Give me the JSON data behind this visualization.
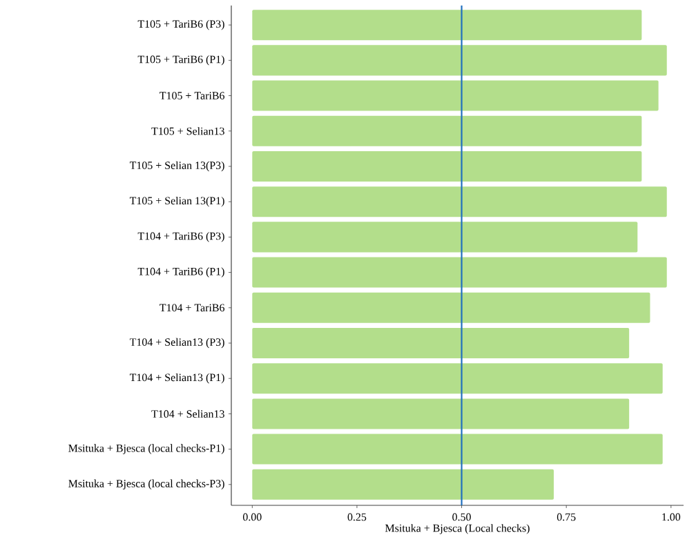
{
  "chart_data": {
    "type": "bar",
    "orientation": "horizontal",
    "xlabel": "Msituka + Bjesca (Local checks)",
    "categories": [
      "T105 + TariB6 (P3)",
      "T105 + TariB6 (P1)",
      "T105 + TariB6",
      "T105 + Selian13",
      "T105 + Selian 13(P3)",
      "T105 + Selian 13(P1)",
      "T104 + TariB6 (P3)",
      "T104 + TariB6 (P1)",
      "T104 + TariB6",
      "T104 + Selian13 (P3)",
      "T104 + Selian13 (P1)",
      "T104 + Selian13",
      "Msituka + Bjesca (local checks-P1)",
      "Msituka + Bjesca (local checks-P3)"
    ],
    "values": [
      0.93,
      0.99,
      0.97,
      0.93,
      0.93,
      0.99,
      0.92,
      0.99,
      0.95,
      0.9,
      0.98,
      0.9,
      0.98,
      0.72
    ],
    "color": "#b3de8b",
    "xlim": [
      -0.05,
      1.03
    ],
    "xticks": [
      {
        "value": 0,
        "label": "0.00"
      },
      {
        "value": 0.25,
        "label": "0.25"
      },
      {
        "value": 0.5,
        "label": "0.50"
      },
      {
        "value": 0.75,
        "label": "0.75"
      },
      {
        "value": 1,
        "label": "1.00"
      }
    ],
    "ref_lines": [
      {
        "axis": "x",
        "value": 0.5,
        "color": "#1f6fbf"
      }
    ]
  }
}
